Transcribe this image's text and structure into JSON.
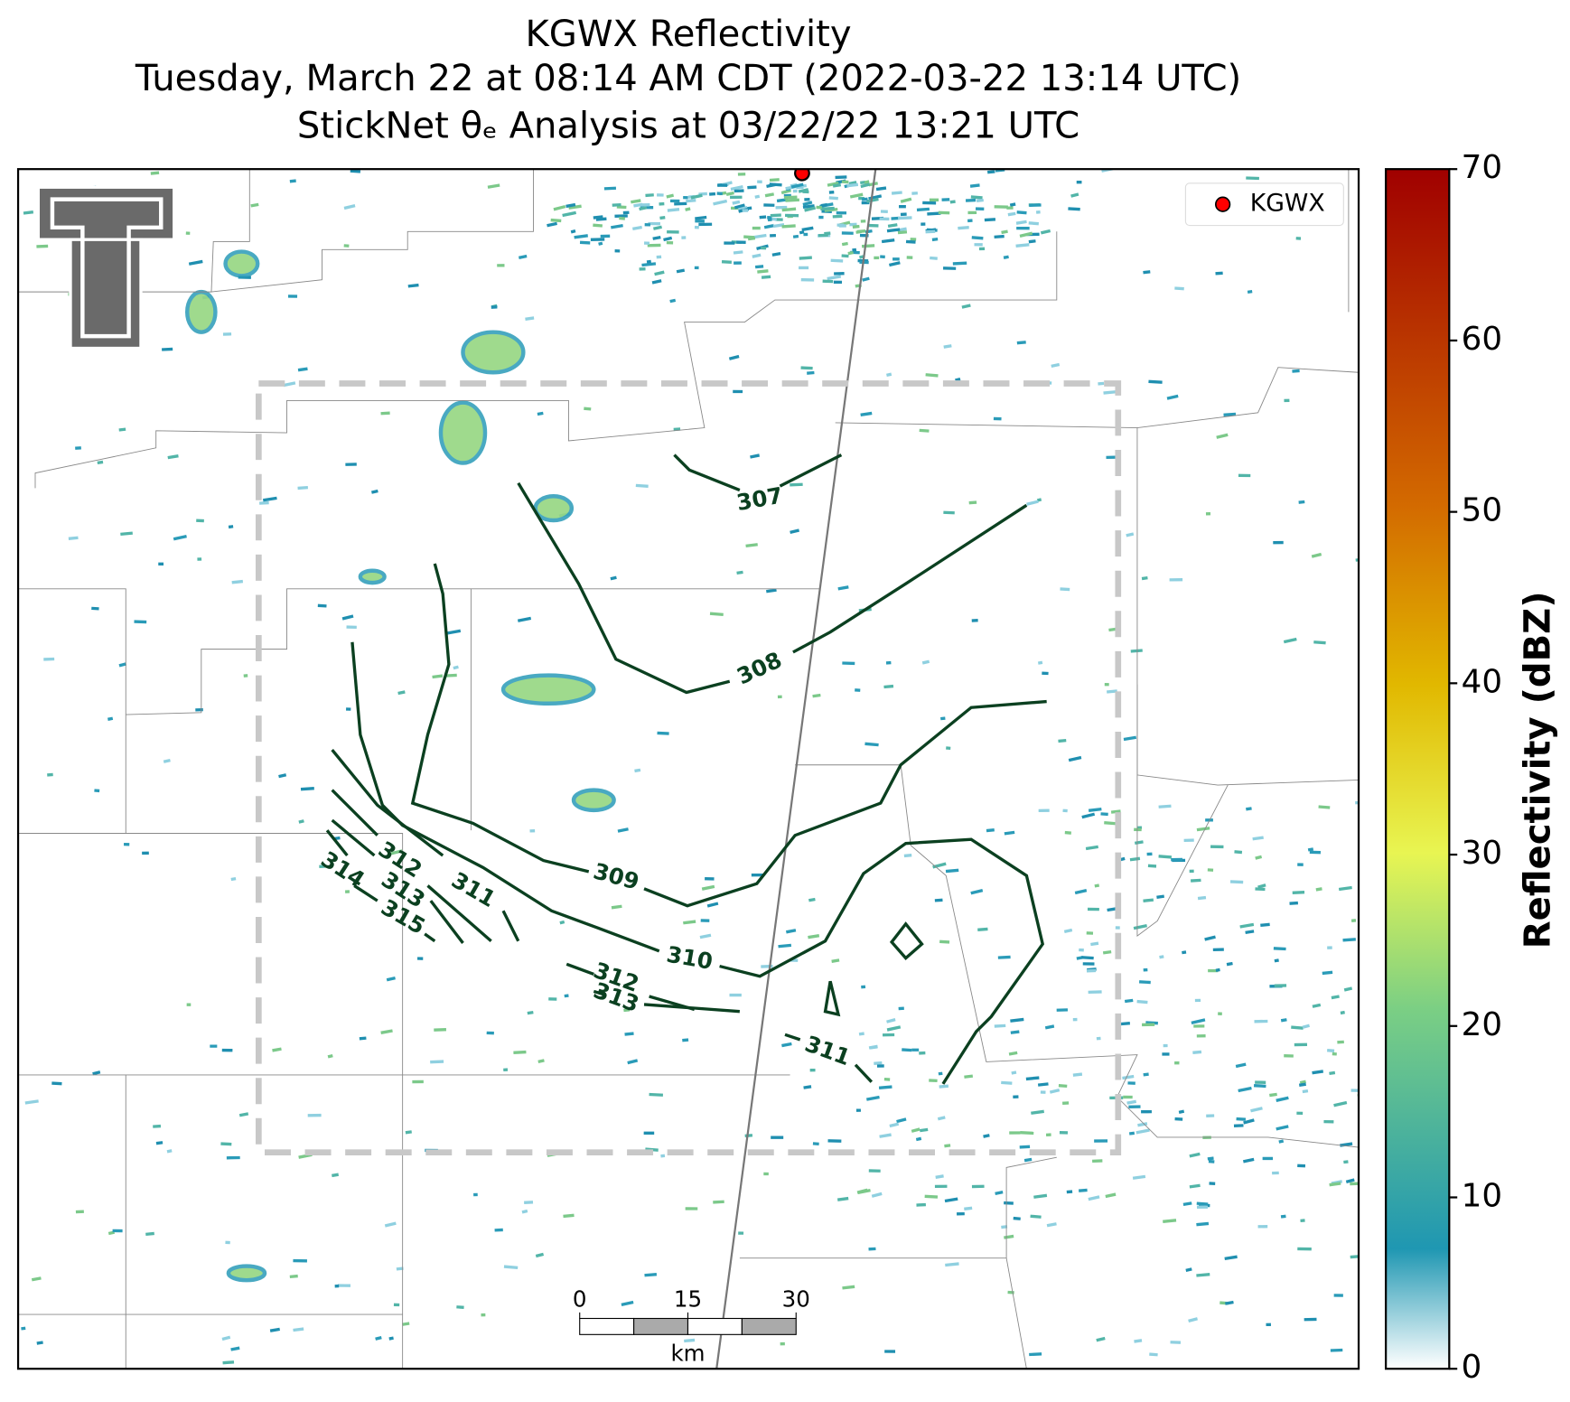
{
  "title": [
    "KGWX Reflectivity",
    "Tuesday, March 22 at 08:14 AM CDT (2022-03-22 13:14 UTC)",
    "StickNet θₑ Analysis at 03/22/22 13:21 UTC"
  ],
  "legend": {
    "label": "KGWX",
    "color": "#ff0000"
  },
  "contour_labels": [
    307,
    308,
    309,
    310,
    311,
    312,
    313,
    314,
    315,
    312,
    313,
    311
  ],
  "scale_bar": {
    "ticks": [
      0,
      15,
      30
    ],
    "unit": "km"
  },
  "colorbar": {
    "label": "Reflectivity (dBZ)",
    "lim": [
      0,
      70
    ],
    "ticks": [
      0,
      10,
      20,
      30,
      40,
      50,
      60,
      70
    ]
  }
}
